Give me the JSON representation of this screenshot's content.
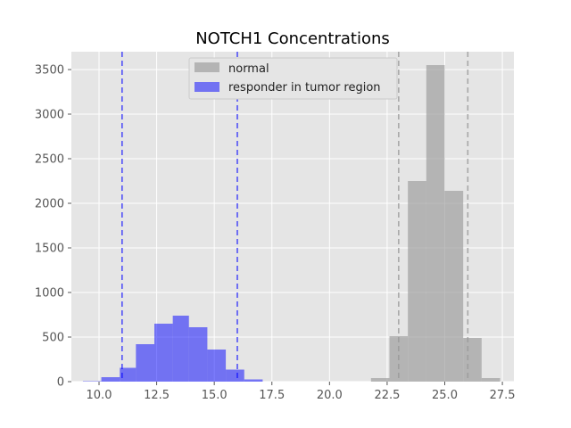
{
  "chart_data": {
    "type": "histogram",
    "title": "NOTCH1 Concentrations",
    "xlabel": "",
    "ylabel": "",
    "xlim": [
      8.8,
      28.0
    ],
    "ylim": [
      0,
      3700
    ],
    "grid": true,
    "legend_position": "top-center",
    "x_ticks": [
      10.0,
      12.5,
      15.0,
      17.5,
      20.0,
      22.5,
      25.0,
      27.5
    ],
    "x_tick_labels": [
      "10.0",
      "12.5",
      "15.0",
      "17.5",
      "20.0",
      "22.5",
      "25.0",
      "27.5"
    ],
    "y_ticks": [
      0,
      500,
      1000,
      1500,
      2000,
      2500,
      3000,
      3500
    ],
    "y_tick_labels": [
      "0",
      "500",
      "1000",
      "1500",
      "2000",
      "2500",
      "3000",
      "3500"
    ],
    "series": [
      {
        "name": "normal",
        "color": "#999999",
        "opacity": 0.65,
        "bins": [
          {
            "x0": 21.8,
            "x1": 22.6,
            "value": 40
          },
          {
            "x0": 22.6,
            "x1": 23.4,
            "value": 510
          },
          {
            "x0": 23.4,
            "x1": 24.2,
            "value": 2250
          },
          {
            "x0": 24.2,
            "x1": 25.0,
            "value": 3550
          },
          {
            "x0": 25.0,
            "x1": 25.8,
            "value": 2140
          },
          {
            "x0": 25.8,
            "x1": 26.6,
            "value": 490
          },
          {
            "x0": 26.6,
            "x1": 27.4,
            "value": 40
          }
        ],
        "vlines": [
          23.0,
          26.0
        ]
      },
      {
        "name": "responder in tumor region",
        "color": "#0000ff",
        "opacity": 0.5,
        "bins": [
          {
            "x0": 9.3,
            "x1": 10.1,
            "value": 5
          },
          {
            "x0": 10.1,
            "x1": 10.9,
            "value": 50
          },
          {
            "x0": 10.9,
            "x1": 11.6,
            "value": 155
          },
          {
            "x0": 11.6,
            "x1": 12.4,
            "value": 420
          },
          {
            "x0": 12.4,
            "x1": 13.2,
            "value": 650
          },
          {
            "x0": 13.2,
            "x1": 13.9,
            "value": 740
          },
          {
            "x0": 13.9,
            "x1": 14.7,
            "value": 610
          },
          {
            "x0": 14.7,
            "x1": 15.5,
            "value": 360
          },
          {
            "x0": 15.5,
            "x1": 16.3,
            "value": 135
          },
          {
            "x0": 16.3,
            "x1": 17.1,
            "value": 25
          }
        ],
        "vlines": [
          11.0,
          16.0
        ]
      }
    ]
  }
}
